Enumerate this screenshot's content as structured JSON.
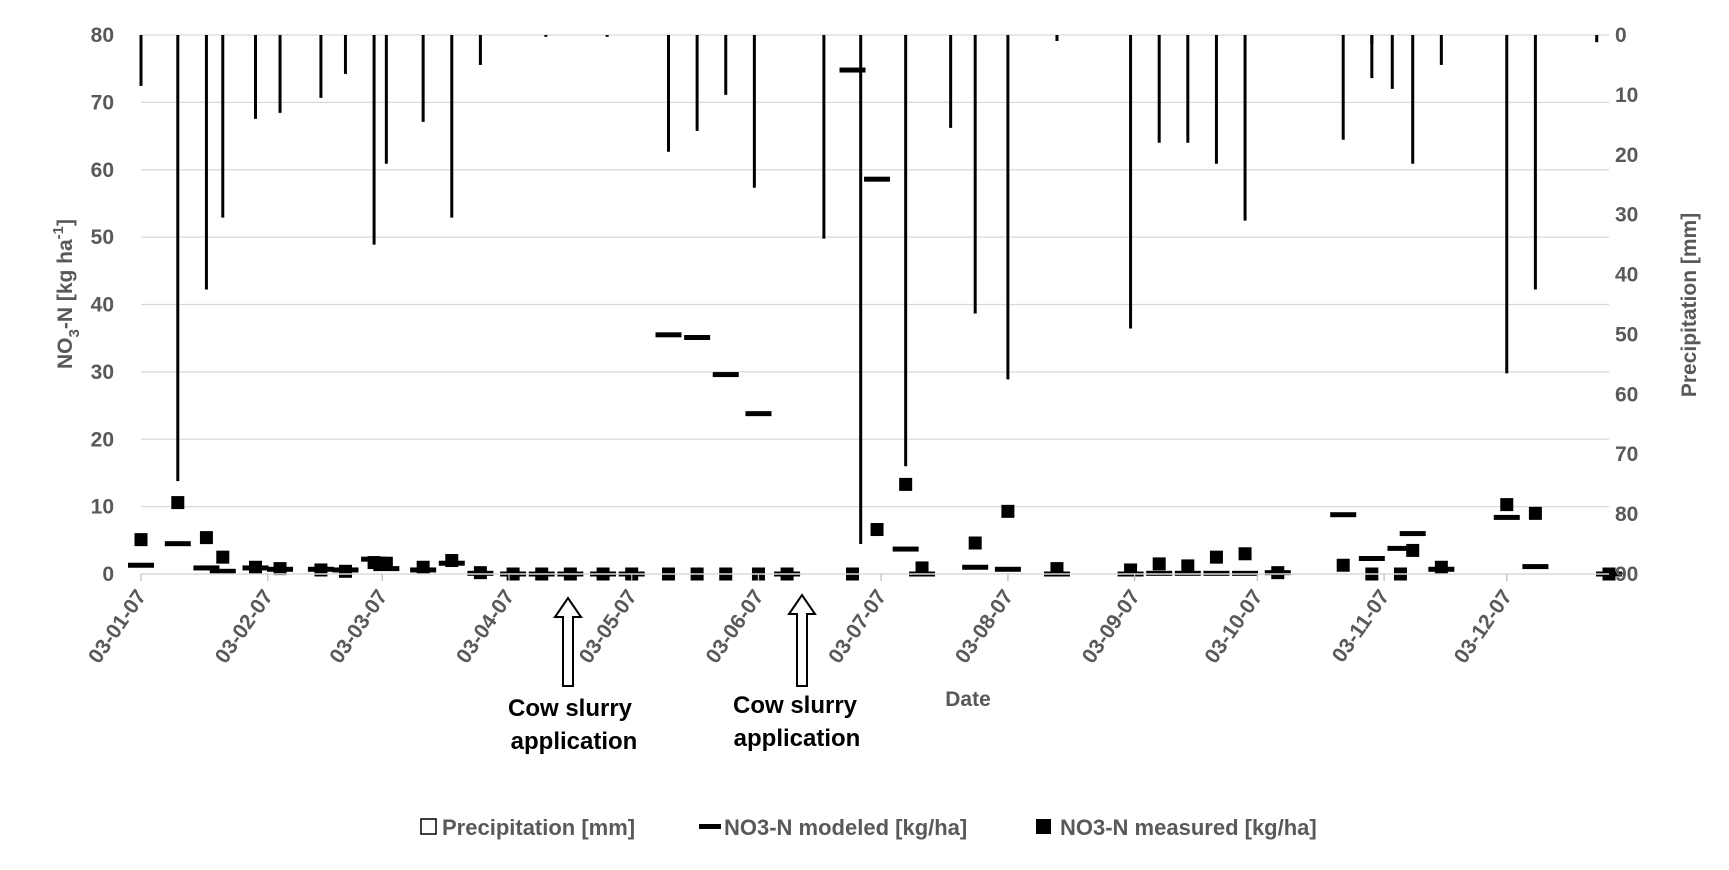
{
  "chart_data": {
    "type": "bar+scatter",
    "xlabel": "Date",
    "ylabel_left_main": "NO",
    "ylabel_left_sub": "3",
    "ylabel_left_mid": "-N [kg ha",
    "ylabel_left_sup": "-1",
    "ylabel_left_end": "]",
    "ylabel_right": "Precipitation [mm]",
    "ylim_left": [
      0,
      80
    ],
    "ylim_right_inverted": [
      0,
      90
    ],
    "x_range": [
      "2007-01-03",
      "2007-12-28"
    ],
    "x_tick_labels": [
      "03-01-07",
      "03-02-07",
      "03-03-07",
      "03-04-07",
      "03-05-07",
      "03-06-07",
      "03-07-07",
      "03-08-07",
      "03-09-07",
      "03-10-07",
      "03-11-07",
      "03-12-07"
    ],
    "x_tick_dates": [
      "2007-01-03",
      "2007-02-03",
      "2007-03-03",
      "2007-04-03",
      "2007-05-03",
      "2007-06-03",
      "2007-07-03",
      "2007-08-03",
      "2007-09-03",
      "2007-10-03",
      "2007-11-03",
      "2007-12-03"
    ],
    "y_left_ticks": [
      0,
      10,
      20,
      30,
      40,
      50,
      60,
      70,
      80
    ],
    "y_right_ticks": [
      0,
      10,
      20,
      30,
      40,
      50,
      60,
      70,
      80,
      90
    ],
    "grid": true,
    "legend_position": "bottom",
    "legend": [
      {
        "label": "Precipitation [mm]",
        "symbol": "hollow-square"
      },
      {
        "label": "NO3-N modeled [kg/ha]",
        "symbol": "dash"
      },
      {
        "label": "NO3-N measured [kg/ha]",
        "symbol": "filled-square"
      }
    ],
    "annotations": [
      {
        "date": "2007-04-15",
        "line1": "Cow slurry",
        "line2": "application"
      },
      {
        "date": "2007-06-13",
        "line1": "Cow slurry",
        "line2": "application"
      }
    ],
    "series": [
      {
        "name": "Precipitation [mm]",
        "kind": "bar",
        "axis": "right",
        "points": [
          [
            "2007-01-03",
            8.5
          ],
          [
            "2007-01-12",
            74.5
          ],
          [
            "2007-01-19",
            42.5
          ],
          [
            "2007-01-23",
            30.5
          ],
          [
            "2007-01-31",
            14
          ],
          [
            "2007-02-06",
            13
          ],
          [
            "2007-02-16",
            10.5
          ],
          [
            "2007-02-22",
            6.5
          ],
          [
            "2007-03-01",
            35
          ],
          [
            "2007-03-04",
            21.5
          ],
          [
            "2007-03-13",
            14.5
          ],
          [
            "2007-03-20",
            30.5
          ],
          [
            "2007-03-27",
            5
          ],
          [
            "2007-04-12",
            0.3
          ],
          [
            "2007-04-27",
            0.3
          ],
          [
            "2007-05-12",
            19.5
          ],
          [
            "2007-05-19",
            16
          ],
          [
            "2007-05-26",
            10
          ],
          [
            "2007-06-02",
            25.5
          ],
          [
            "2007-06-19",
            34
          ],
          [
            "2007-06-28",
            85
          ],
          [
            "2007-07-09",
            72
          ],
          [
            "2007-07-20",
            15.5
          ],
          [
            "2007-07-26",
            46.5
          ],
          [
            "2007-08-03",
            57.5
          ],
          [
            "2007-08-15",
            1
          ],
          [
            "2007-09-02",
            49
          ],
          [
            "2007-09-09",
            18
          ],
          [
            "2007-09-16",
            18
          ],
          [
            "2007-09-23",
            21.5
          ],
          [
            "2007-09-30",
            31
          ],
          [
            "2007-10-31",
            1.5
          ],
          [
            "2007-10-24",
            17.5
          ],
          [
            "2007-10-31",
            7.2
          ],
          [
            "2007-11-05",
            9
          ],
          [
            "2007-11-10",
            21.5
          ],
          [
            "2007-11-17",
            5
          ],
          [
            "2007-12-03",
            56.5
          ],
          [
            "2007-12-10",
            42.5
          ],
          [
            "2007-12-25",
            1.2
          ]
        ]
      },
      {
        "name": "NO3-N modeled [kg/ha]",
        "kind": "dash",
        "axis": "left",
        "points": [
          [
            "2007-01-03",
            1.3
          ],
          [
            "2007-01-12",
            4.5
          ],
          [
            "2007-01-19",
            0.9
          ],
          [
            "2007-01-23",
            0.4
          ],
          [
            "2007-01-31",
            0.9
          ],
          [
            "2007-02-06",
            0.7
          ],
          [
            "2007-02-16",
            0.7
          ],
          [
            "2007-02-22",
            0.6
          ],
          [
            "2007-03-01",
            2.2
          ],
          [
            "2007-03-04",
            0.8
          ],
          [
            "2007-03-13",
            0.6
          ],
          [
            "2007-03-20",
            1.6
          ],
          [
            "2007-03-27",
            0.1
          ],
          [
            "2007-04-04",
            0
          ],
          [
            "2007-04-11",
            0
          ],
          [
            "2007-04-18",
            0
          ],
          [
            "2007-04-26",
            0
          ],
          [
            "2007-05-03",
            0
          ],
          [
            "2007-05-12",
            35.5
          ],
          [
            "2007-05-19",
            35.1
          ],
          [
            "2007-05-26",
            29.6
          ],
          [
            "2007-06-03",
            23.8
          ],
          [
            "2007-06-10",
            0
          ],
          [
            "2007-06-26",
            74.8
          ],
          [
            "2007-07-02",
            58.6
          ],
          [
            "2007-07-09",
            3.7
          ],
          [
            "2007-07-13",
            0
          ],
          [
            "2007-07-26",
            1.0
          ],
          [
            "2007-08-03",
            0.7
          ],
          [
            "2007-08-15",
            0
          ],
          [
            "2007-09-02",
            0
          ],
          [
            "2007-09-09",
            0.1
          ],
          [
            "2007-09-16",
            0.1
          ],
          [
            "2007-09-23",
            0.1
          ],
          [
            "2007-09-30",
            0.1
          ],
          [
            "2007-10-08",
            0.2
          ],
          [
            "2007-10-24",
            8.8
          ],
          [
            "2007-10-31",
            2.3
          ],
          [
            "2007-11-07",
            3.8
          ],
          [
            "2007-11-10",
            6.0
          ],
          [
            "2007-11-17",
            0.7
          ],
          [
            "2007-12-03",
            8.4
          ],
          [
            "2007-12-10",
            1.1
          ],
          [
            "2007-12-28",
            0
          ]
        ]
      },
      {
        "name": "NO3-N measured [kg/ha]",
        "kind": "square",
        "axis": "left",
        "points": [
          [
            "2007-01-03",
            5.1
          ],
          [
            "2007-01-12",
            10.6
          ],
          [
            "2007-01-19",
            5.4
          ],
          [
            "2007-01-23",
            2.5
          ],
          [
            "2007-01-31",
            1.0
          ],
          [
            "2007-02-06",
            0.8
          ],
          [
            "2007-02-16",
            0.6
          ],
          [
            "2007-02-22",
            0.4
          ],
          [
            "2007-03-01",
            1.7
          ],
          [
            "2007-03-04",
            1.6
          ],
          [
            "2007-03-13",
            1.0
          ],
          [
            "2007-03-20",
            2.0
          ],
          [
            "2007-03-27",
            0.2
          ],
          [
            "2007-04-04",
            0
          ],
          [
            "2007-04-11",
            0
          ],
          [
            "2007-04-18",
            0
          ],
          [
            "2007-04-26",
            0
          ],
          [
            "2007-05-03",
            0
          ],
          [
            "2007-05-12",
            0
          ],
          [
            "2007-05-19",
            0
          ],
          [
            "2007-05-26",
            0
          ],
          [
            "2007-06-03",
            0
          ],
          [
            "2007-06-10",
            0
          ],
          [
            "2007-06-26",
            0
          ],
          [
            "2007-07-02",
            6.6
          ],
          [
            "2007-07-09",
            13.3
          ],
          [
            "2007-07-13",
            0.9
          ],
          [
            "2007-07-26",
            4.6
          ],
          [
            "2007-08-03",
            9.3
          ],
          [
            "2007-08-15",
            0.8
          ],
          [
            "2007-09-02",
            0.6
          ],
          [
            "2007-09-09",
            1.5
          ],
          [
            "2007-09-16",
            1.2
          ],
          [
            "2007-09-23",
            2.5
          ],
          [
            "2007-09-30",
            3.0
          ],
          [
            "2007-10-08",
            0.2
          ],
          [
            "2007-10-24",
            1.3
          ],
          [
            "2007-10-31",
            0
          ],
          [
            "2007-11-07",
            0
          ],
          [
            "2007-11-10",
            3.5
          ],
          [
            "2007-11-17",
            1.0
          ],
          [
            "2007-12-03",
            10.3
          ],
          [
            "2007-12-10",
            9.0
          ],
          [
            "2007-12-28",
            0
          ]
        ]
      }
    ]
  }
}
